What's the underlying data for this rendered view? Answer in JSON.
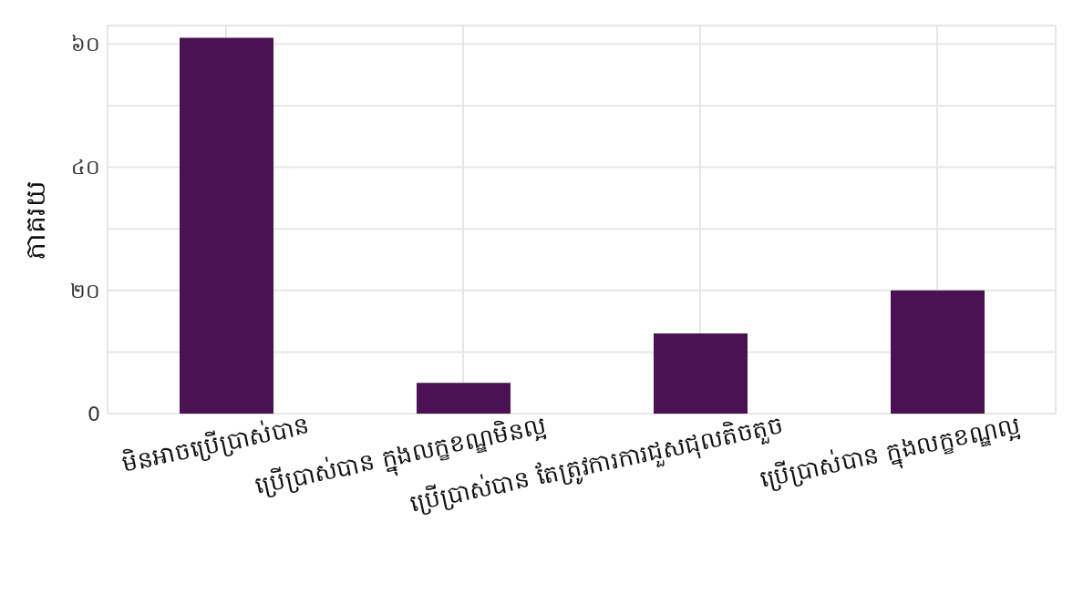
{
  "chart_data": {
    "type": "bar",
    "ylabel": "ភាគរយ",
    "categories": [
      "មិនអាចប្រើប្រាស់បាន",
      "ប្រើប្រាស់បាន ក្នុងលក្ខខណ្ឌមិនល្អ",
      "ប្រើប្រាស់បាន តែត្រូវការការជួសជុលតិចតួច",
      "ប្រើប្រាស់បាន ក្នុងលក្ខខណ្ឌល្អ"
    ],
    "values": [
      61,
      5,
      13,
      20
    ],
    "color": "#4a1153",
    "ylim": [
      0,
      63
    ],
    "yticks": [
      {
        "value": 0,
        "label": "0"
      },
      {
        "value": 10,
        "label": null
      },
      {
        "value": 20,
        "label": "២០"
      },
      {
        "value": 30,
        "label": null
      },
      {
        "value": 40,
        "label": "៤០"
      },
      {
        "value": 50,
        "label": null
      },
      {
        "value": 60,
        "label": "៦០"
      }
    ],
    "grid": true
  }
}
